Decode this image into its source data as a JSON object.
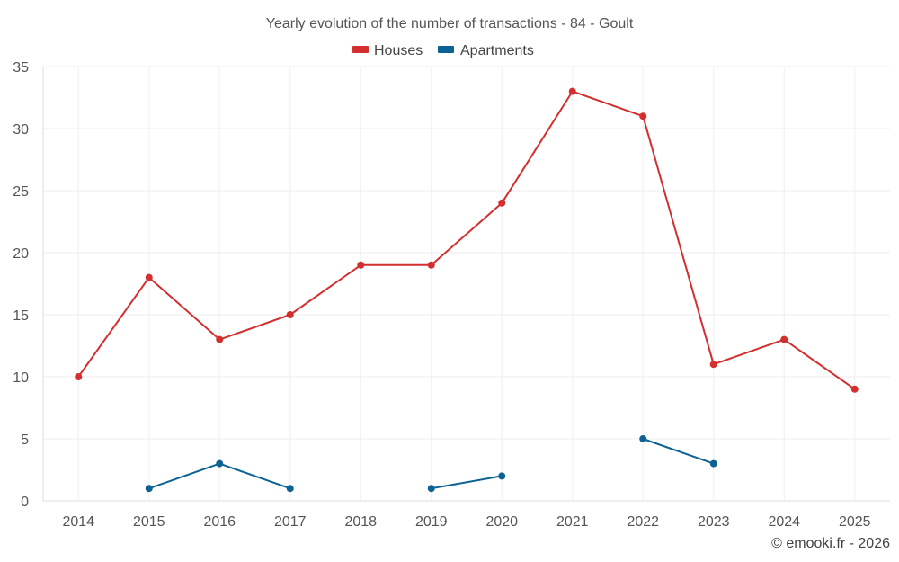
{
  "chart_data": {
    "type": "line",
    "title": "Yearly evolution of the number of transactions - 84 - Goult",
    "categories": [
      "2014",
      "2015",
      "2016",
      "2017",
      "2018",
      "2019",
      "2020",
      "2021",
      "2022",
      "2023",
      "2024",
      "2025"
    ],
    "series": [
      {
        "name": "Houses",
        "color": "#d32f2f",
        "values": [
          10,
          18,
          13,
          15,
          19,
          19,
          24,
          33,
          31,
          11,
          13,
          9
        ]
      },
      {
        "name": "Apartments",
        "color": "#0d6294",
        "values": [
          null,
          1,
          3,
          1,
          null,
          1,
          2,
          null,
          5,
          3,
          null,
          null
        ]
      }
    ],
    "ylim": [
      0,
      35
    ],
    "yticks": [
      0,
      5,
      10,
      15,
      20,
      25,
      30,
      35
    ],
    "xlabel": "",
    "ylabel": "",
    "grid": true,
    "legend_position": "top-center"
  },
  "credit": "© emooki.fr - 2026"
}
